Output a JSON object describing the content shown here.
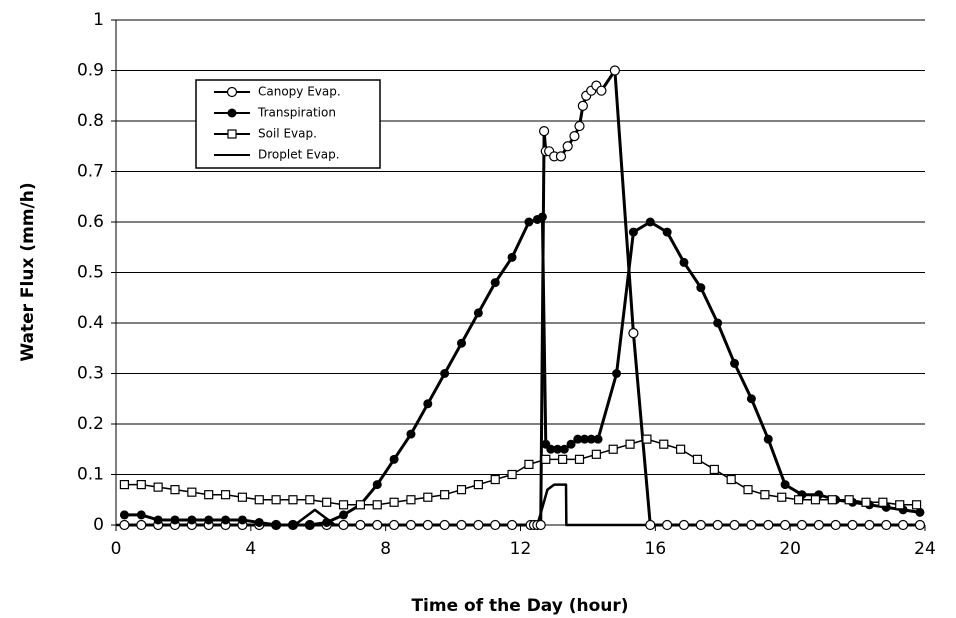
{
  "chart_data": {
    "type": "line",
    "x_label": "Time of the Day (hour)",
    "y_label": "Water Flux (mm/h)",
    "xlim": [
      0,
      24
    ],
    "xticks": [
      0,
      4,
      8,
      12,
      16,
      20,
      24
    ],
    "ylim": [
      0,
      1
    ],
    "yticks": [
      0,
      0.1,
      0.2,
      0.3,
      0.4,
      0.5,
      0.6,
      0.7,
      0.8,
      0.9,
      1
    ],
    "grid": true,
    "legend": "upper left",
    "series": [
      {
        "name": "Canopy Evap.",
        "color": "#000000",
        "marker": "open-circle",
        "x": [
          0.25,
          0.75,
          1.25,
          1.75,
          2.25,
          2.75,
          3.25,
          3.75,
          4.25,
          4.75,
          5.25,
          5.75,
          6.25,
          6.75,
          7.25,
          7.75,
          8.25,
          8.75,
          9.25,
          9.75,
          10.25,
          10.75,
          11.25,
          11.75,
          12.3,
          12.4,
          12.5,
          12.6,
          12.7,
          12.75,
          12.85,
          13,
          13.2,
          13.4,
          13.6,
          13.75,
          13.85,
          13.95,
          14.1,
          14.25,
          14.4,
          14.8,
          15.35,
          15.85,
          16.35,
          16.85,
          17.35,
          17.85,
          18.35,
          18.85,
          19.35,
          19.85,
          20.35,
          20.85,
          21.35,
          21.85,
          22.35,
          22.85,
          23.35,
          23.85
        ],
        "values": [
          0,
          0,
          0,
          0,
          0,
          0,
          0,
          0,
          0,
          0,
          0,
          0,
          0,
          0,
          0,
          0,
          0,
          0,
          0,
          0,
          0,
          0,
          0,
          0,
          0,
          0,
          0,
          0,
          0.78,
          0.74,
          0.74,
          0.73,
          0.73,
          0.75,
          0.77,
          0.79,
          0.83,
          0.85,
          0.86,
          0.87,
          0.86,
          0.9,
          0.38,
          0,
          0,
          0,
          0,
          0,
          0,
          0,
          0,
          0,
          0,
          0,
          0,
          0,
          0,
          0,
          0,
          0
        ]
      },
      {
        "name": "Transpiration",
        "color": "#000000",
        "marker": "filled-circle",
        "x": [
          0.25,
          0.75,
          1.25,
          1.75,
          2.25,
          2.75,
          3.25,
          3.75,
          4.25,
          4.75,
          5.25,
          5.75,
          6.25,
          6.75,
          7.25,
          7.75,
          8.25,
          8.75,
          9.25,
          9.75,
          10.25,
          10.75,
          11.25,
          11.75,
          12.25,
          12.5,
          12.65,
          12.75,
          12.9,
          13.1,
          13.3,
          13.5,
          13.7,
          13.9,
          14.1,
          14.3,
          14.85,
          15.35,
          15.85,
          16.35,
          16.85,
          17.35,
          17.85,
          18.35,
          18.85,
          19.35,
          19.85,
          20.35,
          20.85,
          21.35,
          21.85,
          22.35,
          22.85,
          23.35,
          23.85
        ],
        "values": [
          0.02,
          0.02,
          0.01,
          0.01,
          0.01,
          0.01,
          0.01,
          0.01,
          0.005,
          0,
          0,
          0,
          0.005,
          0.02,
          0.04,
          0.08,
          0.13,
          0.18,
          0.24,
          0.3,
          0.36,
          0.42,
          0.48,
          0.53,
          0.6,
          0.605,
          0.61,
          0.16,
          0.15,
          0.15,
          0.15,
          0.16,
          0.17,
          0.17,
          0.17,
          0.17,
          0.3,
          0.58,
          0.6,
          0.58,
          0.52,
          0.47,
          0.4,
          0.32,
          0.25,
          0.17,
          0.08,
          0.06,
          0.06,
          0.05,
          0.045,
          0.04,
          0.035,
          0.03,
          0.025
        ]
      },
      {
        "name": "Soil Evap.",
        "color": "#000000",
        "marker": "open-square",
        "x": [
          0.25,
          0.75,
          1.25,
          1.75,
          2.25,
          2.75,
          3.25,
          3.75,
          4.25,
          4.75,
          5.25,
          5.75,
          6.25,
          6.75,
          7.25,
          7.75,
          8.25,
          8.75,
          9.25,
          9.75,
          10.25,
          10.75,
          11.25,
          11.75,
          12.25,
          12.75,
          13.25,
          13.75,
          14.25,
          14.75,
          15.25,
          15.75,
          16.25,
          16.75,
          17.25,
          17.75,
          18.25,
          18.75,
          19.25,
          19.75,
          20.25,
          20.75,
          21.25,
          21.75,
          22.25,
          22.75,
          23.25,
          23.75
        ],
        "values": [
          0.08,
          0.08,
          0.075,
          0.07,
          0.065,
          0.06,
          0.06,
          0.055,
          0.05,
          0.05,
          0.05,
          0.05,
          0.045,
          0.04,
          0.04,
          0.04,
          0.045,
          0.05,
          0.055,
          0.06,
          0.07,
          0.08,
          0.09,
          0.1,
          0.12,
          0.13,
          0.13,
          0.13,
          0.14,
          0.15,
          0.16,
          0.17,
          0.16,
          0.15,
          0.13,
          0.11,
          0.09,
          0.07,
          0.06,
          0.055,
          0.05,
          0.05,
          0.05,
          0.05,
          0.045,
          0.045,
          0.04,
          0.04
        ]
      },
      {
        "name": "Droplet Evap.",
        "color": "#000000",
        "marker": "none",
        "x": [
          0,
          5.3,
          5.9,
          6.5,
          12.5,
          12.8,
          13,
          13.35,
          13.36,
          15.8,
          24
        ],
        "values": [
          0,
          0,
          0.03,
          0,
          0,
          0.07,
          0.08,
          0.08,
          0,
          0,
          0
        ]
      }
    ]
  }
}
